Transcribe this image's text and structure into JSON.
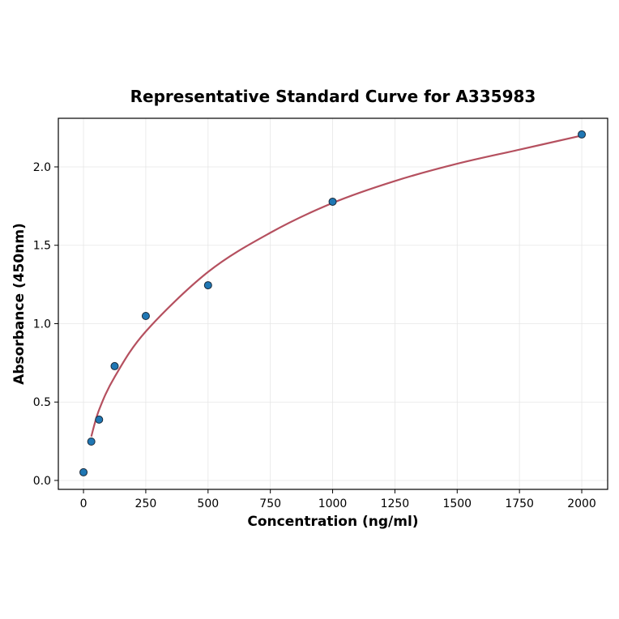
{
  "chart_data": {
    "type": "scatter",
    "title": "Representative Standard Curve for A335983",
    "xlabel": "Concentration (ng/ml)",
    "ylabel": "Absorbance (450nm)",
    "xlim": [
      -101,
      2104
    ],
    "ylim": [
      -0.057,
      2.31
    ],
    "xticks": [
      0,
      250,
      500,
      750,
      1000,
      1250,
      1500,
      1750,
      2000
    ],
    "yticks": [
      0.0,
      0.5,
      1.0,
      1.5,
      2.0
    ],
    "ytick_labels": [
      "0.0",
      "0.5",
      "1.0",
      "1.5",
      "2.0"
    ],
    "grid": true,
    "points": {
      "x": [
        0,
        31.25,
        62.5,
        125,
        250,
        500,
        1000,
        2000
      ],
      "y": [
        0.052,
        0.248,
        0.388,
        0.729,
        1.049,
        1.245,
        1.778,
        2.207
      ],
      "color": "#1f77b4"
    },
    "fit_curve": {
      "x": [
        31.25,
        62.5,
        125,
        250,
        500,
        750,
        1000,
        1250,
        1500,
        1750,
        2000
      ],
      "y": [
        0.28,
        0.45,
        0.66,
        0.95,
        1.33,
        1.58,
        1.77,
        1.91,
        2.02,
        2.11,
        2.2
      ],
      "color": "#b5505f"
    }
  }
}
